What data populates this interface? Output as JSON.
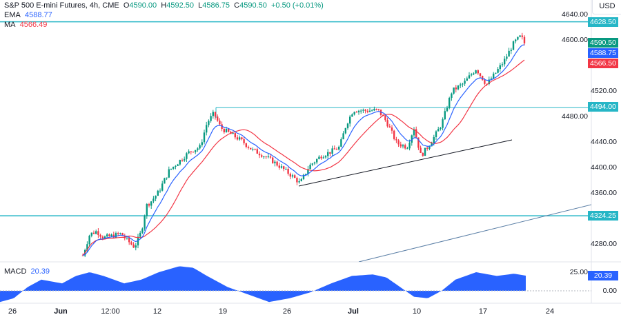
{
  "header": {
    "symbol": "S&P 500 E-mini Futures, 4h, CME",
    "open_label": "O",
    "open": "4590.00",
    "high_label": "H",
    "high": "4592.50",
    "low_label": "L",
    "low": "4586.75",
    "close_label": "C",
    "close": "4590.50",
    "change": "+0.50 (+0.01%)"
  },
  "indicators": {
    "ema_label": "EMA",
    "ema": "4588.77",
    "ma_label": "MA",
    "ma": "4566.49",
    "macd_label": "MACD",
    "macd": "20.39"
  },
  "price_axis": {
    "currency": "USD",
    "ticks": [
      "4640.00",
      "4600.00",
      "4520.00",
      "4480.00",
      "4440.00",
      "4400.00",
      "4360.00",
      "4280.00"
    ],
    "labels": [
      {
        "text": "4628.50",
        "color": "#26b6c6"
      },
      {
        "text": "4590.50",
        "color": "#089981"
      },
      {
        "text": "4588.75",
        "color": "#2962ff"
      },
      {
        "text": "4566.50",
        "color": "#f23645"
      },
      {
        "text": "4494.00",
        "color": "#26b6c6"
      },
      {
        "text": "4324.25",
        "color": "#26b6c6"
      }
    ]
  },
  "macd_axis": {
    "ticks": [
      "25.00",
      "0.00"
    ],
    "value": "20.39"
  },
  "time_axis": [
    "26",
    "Jun",
    "12:00",
    "12",
    "19",
    "26",
    "Jul",
    "10",
    "17",
    "24"
  ],
  "levels": [
    4628.5,
    4494.0,
    4324.25
  ],
  "colors": {
    "up": "#089981",
    "down": "#f23645",
    "ema": "#2962ff",
    "ma": "#f23645",
    "level": "#26b6c6",
    "macd": "#2962ff"
  },
  "price_path": [
    [
      120,
      4262
    ],
    [
      130,
      4295
    ],
    [
      140,
      4300
    ],
    [
      150,
      4290
    ],
    [
      160,
      4292
    ],
    [
      175,
      4296
    ],
    [
      185,
      4285
    ],
    [
      195,
      4275
    ],
    [
      205,
      4300
    ],
    [
      212,
      4340
    ],
    [
      220,
      4348
    ],
    [
      230,
      4362
    ],
    [
      245,
      4395
    ],
    [
      260,
      4410
    ],
    [
      275,
      4425
    ],
    [
      290,
      4432
    ],
    [
      300,
      4470
    ],
    [
      310,
      4485
    ],
    [
      320,
      4462
    ],
    [
      335,
      4452
    ],
    [
      350,
      4442
    ],
    [
      365,
      4428
    ],
    [
      380,
      4420
    ],
    [
      395,
      4410
    ],
    [
      410,
      4398
    ],
    [
      425,
      4385
    ],
    [
      435,
      4375
    ],
    [
      448,
      4402
    ],
    [
      465,
      4418
    ],
    [
      480,
      4425
    ],
    [
      492,
      4432
    ],
    [
      502,
      4468
    ],
    [
      512,
      4490
    ],
    [
      530,
      4489
    ],
    [
      548,
      4490
    ],
    [
      560,
      4472
    ],
    [
      575,
      4438
    ],
    [
      590,
      4432
    ],
    [
      600,
      4462
    ],
    [
      610,
      4418
    ],
    [
      625,
      4440
    ],
    [
      640,
      4468
    ],
    [
      655,
      4520
    ],
    [
      672,
      4532
    ],
    [
      690,
      4555
    ],
    [
      705,
      4530
    ],
    [
      716,
      4545
    ],
    [
      730,
      4566
    ],
    [
      745,
      4596
    ],
    [
      755,
      4606
    ],
    [
      762,
      4590.5
    ]
  ],
  "macd_path": [
    [
      0,
      -15
    ],
    [
      20,
      -10
    ],
    [
      40,
      5
    ],
    [
      60,
      15
    ],
    [
      90,
      10
    ],
    [
      110,
      20
    ],
    [
      130,
      25
    ],
    [
      150,
      20
    ],
    [
      180,
      10
    ],
    [
      205,
      15
    ],
    [
      230,
      25
    ],
    [
      260,
      33
    ],
    [
      280,
      31
    ],
    [
      300,
      20
    ],
    [
      330,
      5
    ],
    [
      360,
      -5
    ],
    [
      390,
      -15
    ],
    [
      420,
      -10
    ],
    [
      450,
      -2
    ],
    [
      480,
      10
    ],
    [
      510,
      20
    ],
    [
      540,
      22
    ],
    [
      560,
      18
    ],
    [
      580,
      5
    ],
    [
      600,
      -8
    ],
    [
      620,
      -10
    ],
    [
      640,
      0
    ],
    [
      660,
      15
    ],
    [
      690,
      25
    ],
    [
      720,
      20
    ],
    [
      745,
      23
    ],
    [
      762,
      20.39
    ]
  ]
}
